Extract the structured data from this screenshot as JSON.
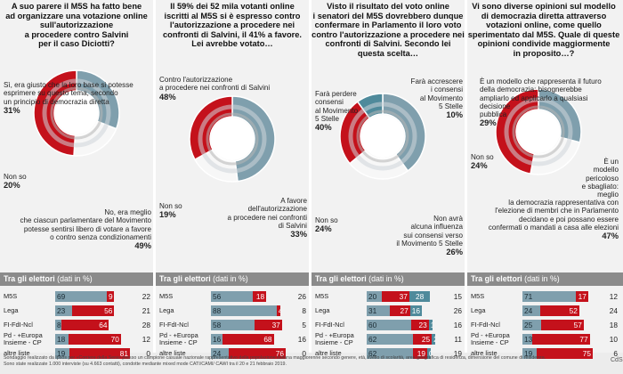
{
  "colors": {
    "grey": "#7f9fad",
    "red": "#c4111b",
    "teal": "#4f8a9b",
    "header": "#8b8b8b"
  },
  "panels": [
    {
      "question": "A suo parere il M5S ha fatto bene\nad organizzare una votazione online\nsull'autorizzazione\na procedere contro Salvini\nper il caso Diciotti?",
      "ring": [
        31,
        20,
        49
      ],
      "labels": [
        {
          "text": "Sì, era giusto che la loro base si potesse\nesprimere su questo tema, secondo\nun principio di democrazia diretta",
          "value": "31%"
        },
        {
          "text": "Non so",
          "value": "20%"
        },
        {
          "text": "No, era meglio\nche ciascun parlamentare del Movimento\npotesse sentirsi libero di votare a favore\no contro senza condizionamenti",
          "value": "49%"
        }
      ],
      "header": {
        "title": "Tra gli elettori",
        "unit": "(dati in %)"
      },
      "rows": [
        {
          "name": "M5S",
          "segs": [
            69,
            9
          ],
          "last": 22
        },
        {
          "name": "Lega",
          "segs": [
            23,
            56
          ],
          "last": 21
        },
        {
          "name": "FI-FdI-Ncl",
          "segs": [
            8,
            64
          ],
          "last": 28
        },
        {
          "name": "Pd - +Europa\nInsieme - CP",
          "segs": [
            18,
            70
          ],
          "last": 12
        },
        {
          "name": "altre liste",
          "segs": [
            19,
            81
          ],
          "last": 0
        }
      ]
    },
    {
      "question": "Il 59% dei 52 mila votanti online\niscritti al M5S si è espresso contro\nl'autorizzazione a procedere nei\nconfronti di Salvini, il 41% a favore.\nLei avrebbe votato…",
      "ring": [
        48,
        19,
        33
      ],
      "labels": [
        {
          "text": "Contro l'autorizzazione\na procedere nei confronti di Salvini",
          "value": "48%"
        },
        {
          "text": "Non so",
          "value": "19%"
        },
        {
          "text": "A favore\ndell'autorizzazione\na procedere nei confronti\ndi Salvini",
          "value": "33%"
        }
      ],
      "header": {
        "title": "Tra gli elettori",
        "unit": "(dati in %)"
      },
      "rows": [
        {
          "name": "M5S",
          "segs": [
            56,
            18
          ],
          "last": 26
        },
        {
          "name": "Lega",
          "segs": [
            88,
            4
          ],
          "last": 8
        },
        {
          "name": "FI-FdI-Ncl",
          "segs": [
            58,
            37
          ],
          "last": 5
        },
        {
          "name": "Pd - +Europa\nInsieme - CP",
          "segs": [
            16,
            68
          ],
          "last": 16
        },
        {
          "name": "altre liste",
          "segs": [
            24,
            76
          ],
          "last": 0
        }
      ]
    },
    {
      "question": "Visto il risultato del voto online\ni senatori del M5S dovrebbero dunque\nconfermare in Parlamento il loro voto\ncontro l'autorizzazione a procedere nei\nconfronti di Salvini. Secondo lei\nquesta scelta…",
      "ring": [
        40,
        24,
        26,
        10
      ],
      "labels": [
        {
          "text": "Farà perdere\nconsensi\nal Movimento\n5 Stelle",
          "value": "40%"
        },
        {
          "text": "Non so",
          "value": "24%"
        },
        {
          "text": "Non avrà\nalcuna influenza\nsui consensi verso\nil Movimento 5 Stelle",
          "value": "26%"
        },
        {
          "text": "Farà accrescere\ni consensi\nal Movimento\n5 Stelle",
          "value": "10%"
        }
      ],
      "header": {
        "title": "Tra gli elettori",
        "unit": "(dati in %)"
      },
      "rows": [
        {
          "name": "M5S",
          "segs": [
            20,
            37,
            28
          ],
          "last": 15
        },
        {
          "name": "Lega",
          "segs": [
            31,
            27,
            16
          ],
          "last": 26
        },
        {
          "name": "FI-FdI-Ncl",
          "segs": [
            60,
            23,
            1
          ],
          "last": 16
        },
        {
          "name": "Pd - +Europa\nInsieme - CP",
          "segs": [
            62,
            25,
            2
          ],
          "last": 11
        },
        {
          "name": "altre liste",
          "segs": [
            62,
            19,
            0
          ],
          "last": 19
        }
      ]
    },
    {
      "question": "Vi sono diverse opinioni sul modello\ndi democrazia diretta attraverso\nvotazioni online, come quello\nsperimentato dal M5S. Quale di queste\nopinioni condivide maggiormente\nin proposito…?",
      "ring": [
        29,
        24,
        47
      ],
      "labels": [
        {
          "text": "È un modello che rappresenta il futuro\ndella democrazia: bisognerebbe\nampliarlo ed applicarlo a qualsiasi\ndecisione\npubblica",
          "value": "29%"
        },
        {
          "text": "Non so",
          "value": "24%"
        },
        {
          "text": "È un\nmodello\npericoloso\ne sbagliato:\nmeglio\nla democrazia rappresentativa con\nl'elezione di membri che in Parlamento\ndecidano e poi possano essere\nconfermati o mandati a casa alle elezioni",
          "value": "47%"
        }
      ],
      "header": {
        "title": "Tra gli elettori",
        "unit": "(dati in %)"
      },
      "rows": [
        {
          "name": "M5S",
          "segs": [
            71,
            17
          ],
          "last": 12
        },
        {
          "name": "Lega",
          "segs": [
            24,
            52
          ],
          "last": 24
        },
        {
          "name": "FI-FdI-Ncl",
          "segs": [
            25,
            57
          ],
          "last": 18
        },
        {
          "name": "Pd - +Europa\nInsieme - CP",
          "segs": [
            13,
            77
          ],
          "last": 10
        },
        {
          "name": "altre liste",
          "segs": [
            19,
            75
          ],
          "last": 6
        }
      ]
    }
  ],
  "footer": "Sondaggio realizzato da Ipsos per «Corriere della Sera» presso un campione casuale nazionale rappresentativo della popolazione italiana maggiorenne secondo genere, età, livello di scolarità, area geografica di residenza, dimensione del comune di residenza.\nSono state realizzate 1.000 interviste (su 4.663 contatti), condotte mediante mixed mode CATI/CAMI/ CAWI tra il 20 e 21 febbraio 2019.",
  "logo": "CdS",
  "chart_data": [
    {
      "type": "pie",
      "title": "A suo parere il M5S ha fatto bene ad organizzare una votazione online sull'autorizzazione a procedere contro Salvini per il caso Diciotti?",
      "categories": [
        "Sì",
        "Non so",
        "No"
      ],
      "values": [
        31,
        20,
        49
      ]
    },
    {
      "type": "bar",
      "title": "Tra gli elettori (dati in %)",
      "categories": [
        "M5S",
        "Lega",
        "FI-FdI-Ncl",
        "Pd - +Europa Insieme - CP",
        "altre liste"
      ],
      "series": [
        {
          "values": [
            69,
            23,
            8,
            18,
            19
          ]
        },
        {
          "values": [
            9,
            56,
            64,
            70,
            81
          ]
        },
        {
          "values": [
            22,
            21,
            28,
            12,
            0
          ]
        }
      ]
    },
    {
      "type": "pie",
      "title": "Il 59% dei 52 mila votanti online iscritti al M5S si è espresso contro l'autorizzazione a procedere nei confronti di Salvini, il 41% a favore. Lei avrebbe votato…",
      "categories": [
        "Contro l'autorizzazione",
        "Non so",
        "A favore"
      ],
      "values": [
        48,
        19,
        33
      ]
    },
    {
      "type": "bar",
      "title": "Tra gli elettori (dati in %)",
      "categories": [
        "M5S",
        "Lega",
        "FI-FdI-Ncl",
        "Pd - +Europa Insieme - CP",
        "altre liste"
      ],
      "series": [
        {
          "values": [
            56,
            88,
            58,
            16,
            24
          ]
        },
        {
          "values": [
            18,
            4,
            37,
            68,
            76
          ]
        },
        {
          "values": [
            26,
            8,
            5,
            16,
            0
          ]
        }
      ]
    },
    {
      "type": "pie",
      "title": "Visto il risultato del voto online i senatori del M5S dovrebbero dunque confermare in Parlamento il loro voto contro l'autorizzazione a procedere nei confronti di Salvini. Secondo lei questa scelta…",
      "categories": [
        "Farà perdere consensi",
        "Non so",
        "Non avrà alcuna influenza",
        "Farà accrescere i consensi"
      ],
      "values": [
        40,
        24,
        26,
        10
      ]
    },
    {
      "type": "bar",
      "title": "Tra gli elettori (dati in %)",
      "categories": [
        "M5S",
        "Lega",
        "FI-FdI-Ncl",
        "Pd - +Europa Insieme - CP",
        "altre liste"
      ],
      "series": [
        {
          "values": [
            20,
            31,
            60,
            62,
            62
          ]
        },
        {
          "values": [
            37,
            27,
            23,
            25,
            19
          ]
        },
        {
          "values": [
            28,
            16,
            1,
            2,
            0
          ]
        },
        {
          "values": [
            15,
            26,
            16,
            11,
            19
          ]
        }
      ]
    },
    {
      "type": "pie",
      "title": "Vi sono diverse opinioni sul modello di democrazia diretta attraverso votazioni online, come quello sperimentato dal M5S. Quale di queste opinioni condivide maggiormente in proposito…?",
      "categories": [
        "Modello del futuro",
        "Non so",
        "Modello pericoloso"
      ],
      "values": [
        29,
        24,
        47
      ]
    },
    {
      "type": "bar",
      "title": "Tra gli elettori (dati in %)",
      "categories": [
        "M5S",
        "Lega",
        "FI-FdI-Ncl",
        "Pd - +Europa Insieme - CP",
        "altre liste"
      ],
      "series": [
        {
          "values": [
            71,
            24,
            25,
            13,
            19
          ]
        },
        {
          "values": [
            17,
            52,
            57,
            77,
            75
          ]
        },
        {
          "values": [
            12,
            24,
            18,
            10,
            6
          ]
        }
      ]
    }
  ]
}
